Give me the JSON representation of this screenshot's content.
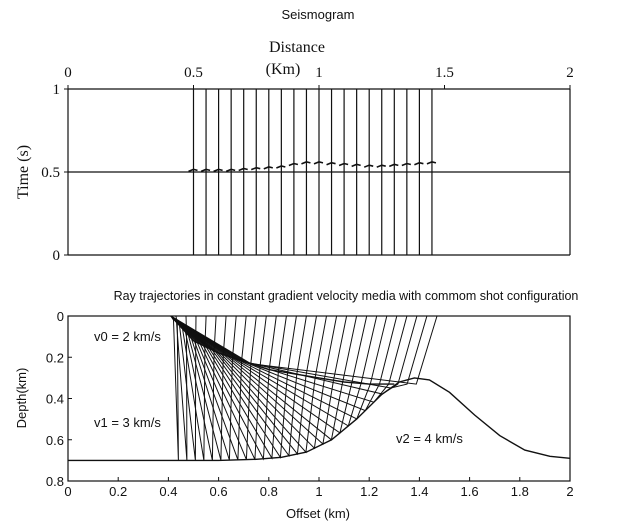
{
  "chart_data": [
    {
      "type": "seismogram",
      "title": "Seismogram",
      "xlabel_line1": "Distance",
      "xlabel_line2": "(Km)",
      "ylabel": "Time (s)",
      "xlim": [
        0,
        2
      ],
      "ylim": [
        0,
        1
      ],
      "y_inverted": false,
      "x_ticks": [
        0,
        0.5,
        1,
        1.5,
        2
      ],
      "x_tick_labels": [
        "0",
        "0.5",
        "1",
        "1.5",
        "2"
      ],
      "y_ticks": [
        0,
        0.5,
        1
      ],
      "y_tick_labels": [
        "0",
        "0.5",
        "1"
      ],
      "grid_y": [
        0.5,
        1
      ],
      "trace_offsets_km": [
        0.5,
        0.55,
        0.6,
        0.65,
        0.7,
        0.75,
        0.8,
        0.85,
        0.9,
        0.95,
        1.0,
        1.05,
        1.1,
        1.15,
        1.2,
        1.25,
        1.3,
        1.35,
        1.4,
        1.45
      ],
      "arrival_times_s": [
        0.51,
        0.51,
        0.51,
        0.51,
        0.515,
        0.52,
        0.525,
        0.53,
        0.545,
        0.555,
        0.555,
        0.55,
        0.545,
        0.54,
        0.535,
        0.535,
        0.54,
        0.545,
        0.55,
        0.555
      ]
    },
    {
      "type": "ray_trace",
      "title": "Ray trajectories in constant gradient velocity media with commom shot configuration",
      "xlabel": "Offset (km)",
      "ylabel": "Depth(km)",
      "xlim": [
        0,
        2
      ],
      "ylim": [
        0,
        0.8
      ],
      "y_inverted": true,
      "x_ticks": [
        0,
        0.2,
        0.4,
        0.6,
        0.8,
        1,
        1.2,
        1.4,
        1.6,
        1.8,
        2
      ],
      "x_tick_labels": [
        "0",
        "0.2",
        "0.4",
        "0.6",
        "0.8",
        "1",
        "1.2",
        "1.4",
        "1.6",
        "1.8",
        "2"
      ],
      "y_ticks": [
        0,
        0.2,
        0.4,
        0.6,
        0.8
      ],
      "y_tick_labels": [
        "0",
        "0.2",
        "0.4",
        "0.6",
        "0.8"
      ],
      "annotations": [
        "v0 = 2 km/s",
        "v1 = 3 km/s",
        "v2 = 4 km/s"
      ],
      "source": {
        "x": 0.41,
        "depth": 0
      },
      "receivers_x": [
        0.43,
        0.47,
        0.51,
        0.55,
        0.59,
        0.63,
        0.67,
        0.71,
        0.75,
        0.79,
        0.83,
        0.87,
        0.91,
        0.95,
        0.99,
        1.03,
        1.07,
        1.11,
        1.15,
        1.19,
        1.23,
        1.27,
        1.31,
        1.35,
        1.39,
        1.43,
        1.47
      ],
      "interface1": [
        [
          0.41,
          0.0
        ],
        [
          0.5,
          0.12
        ],
        [
          0.6,
          0.18
        ],
        [
          0.7,
          0.22
        ],
        [
          0.8,
          0.26
        ],
        [
          0.9,
          0.28
        ],
        [
          1.0,
          0.3
        ],
        [
          1.1,
          0.32
        ],
        [
          1.2,
          0.33
        ],
        [
          1.3,
          0.33
        ]
      ],
      "interface2": [
        [
          0.0,
          0.7
        ],
        [
          0.4,
          0.7
        ],
        [
          0.6,
          0.7
        ],
        [
          0.75,
          0.695
        ],
        [
          0.85,
          0.685
        ],
        [
          0.95,
          0.66
        ],
        [
          1.05,
          0.6
        ],
        [
          1.15,
          0.5
        ],
        [
          1.25,
          0.38
        ],
        [
          1.32,
          0.32
        ],
        [
          1.38,
          0.3
        ],
        [
          1.44,
          0.31
        ],
        [
          1.52,
          0.37
        ],
        [
          1.62,
          0.48
        ],
        [
          1.72,
          0.58
        ],
        [
          1.82,
          0.65
        ],
        [
          1.92,
          0.68
        ],
        [
          2.0,
          0.69
        ]
      ]
    }
  ]
}
